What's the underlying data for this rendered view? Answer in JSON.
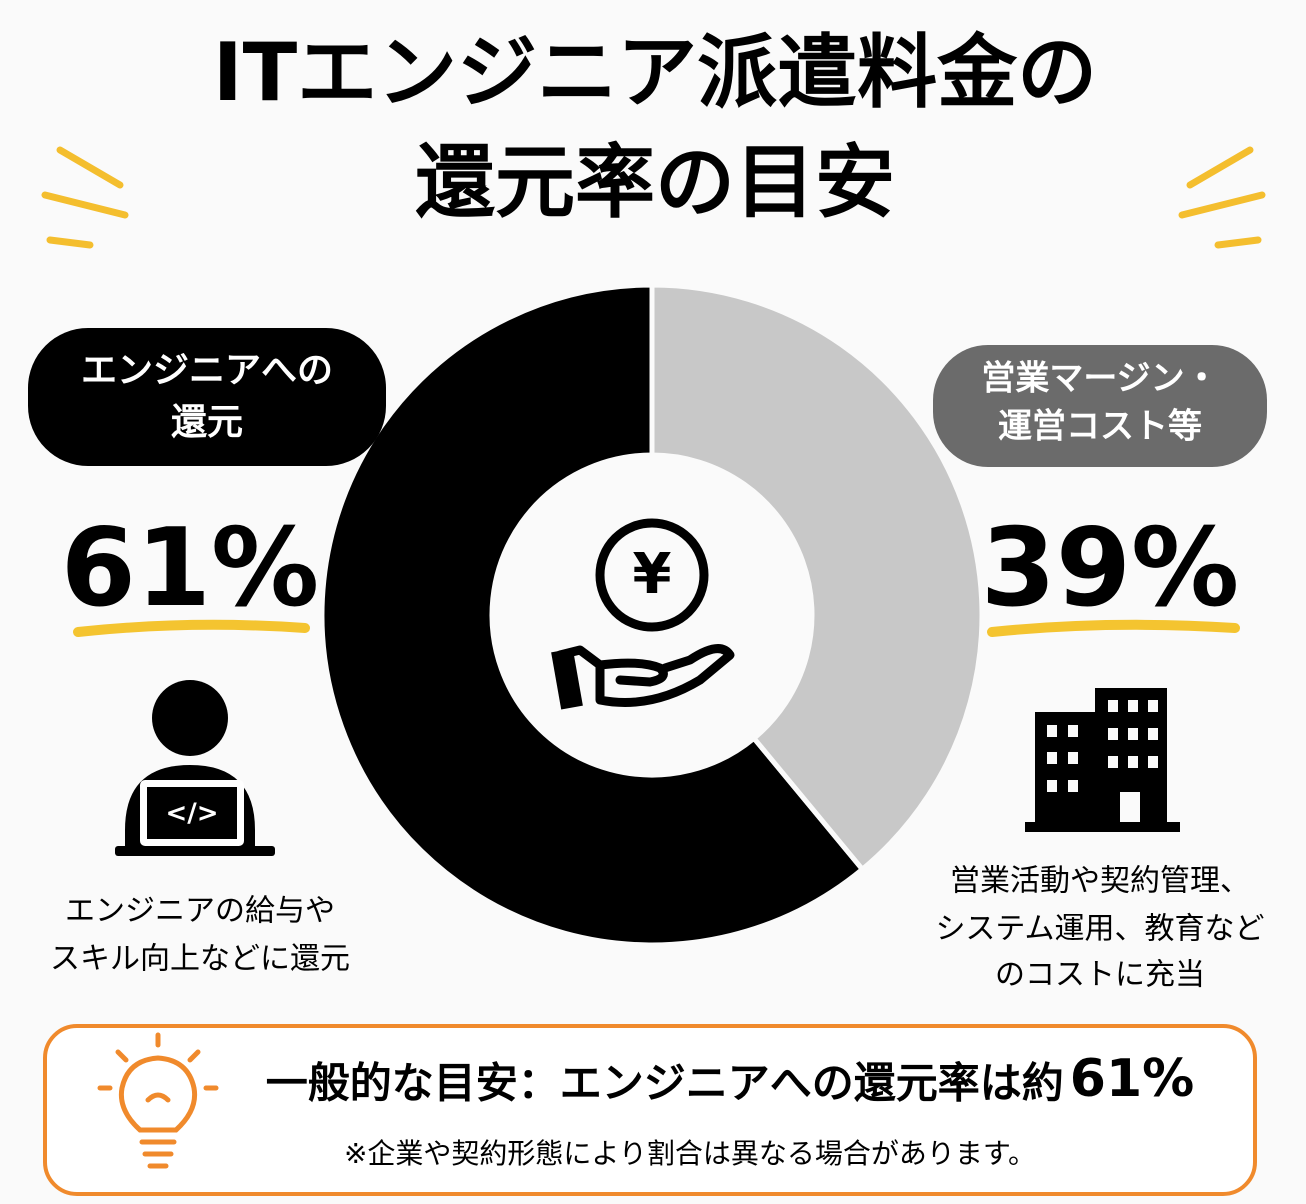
{
  "chart_data": {
    "type": "donut",
    "title": [
      "ITエンジニア派遣料金の",
      "還元率の目安"
    ],
    "categories": [
      [
        "エンジニアへの",
        "還元"
      ],
      [
        "営業マージン・",
        "運営コスト等"
      ]
    ],
    "values": [
      61,
      39
    ],
    "value_labels": [
      "61%",
      "39%"
    ],
    "colors": [
      "#000000",
      "#c8c8c8"
    ],
    "descriptions": [
      [
        "エンジニアの給与や",
        "スキル向上などに還元"
      ],
      [
        "営業活動や契約管理、",
        "システム運用、教育など",
        "のコストに充当"
      ]
    ],
    "summary": [
      "一般的な目安：エンジニアへの還元率は約",
      "61%"
    ],
    "note": "※企業や契約形態により割合は異なる場合があります。"
  }
}
